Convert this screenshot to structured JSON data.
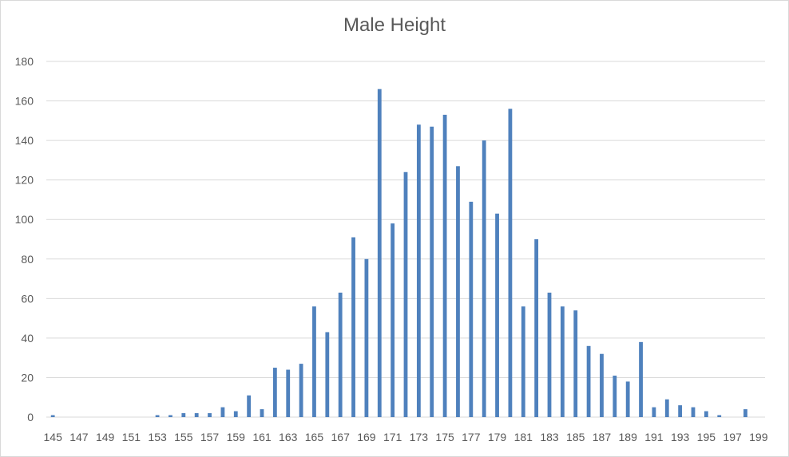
{
  "chart_data": {
    "type": "bar",
    "title": "Male Height",
    "xlabel": "",
    "ylabel": "",
    "ylim": [
      0,
      180
    ],
    "yticks": [
      "0",
      "20",
      "40",
      "60",
      "80",
      "100",
      "120",
      "140",
      "160",
      "180"
    ],
    "grid": true,
    "legend": "none",
    "bar_color": "#4f81bd",
    "categories": [
      "145",
      "146",
      "147",
      "148",
      "149",
      "150",
      "151",
      "152",
      "153",
      "154",
      "155",
      "156",
      "157",
      "158",
      "159",
      "160",
      "161",
      "162",
      "163",
      "164",
      "165",
      "166",
      "167",
      "168",
      "169",
      "170",
      "171",
      "172",
      "173",
      "174",
      "175",
      "176",
      "177",
      "178",
      "179",
      "180",
      "181",
      "182",
      "183",
      "184",
      "185",
      "186",
      "187",
      "188",
      "189",
      "190",
      "191",
      "192",
      "193",
      "194",
      "195",
      "196",
      "197",
      "198",
      "199"
    ],
    "xtick_labels": [
      "145",
      "",
      "147",
      "",
      "149",
      "",
      "151",
      "",
      "153",
      "",
      "155",
      "",
      "157",
      "",
      "159",
      "",
      "161",
      "",
      "163",
      "",
      "165",
      "",
      "167",
      "",
      "169",
      "",
      "171",
      "",
      "173",
      "",
      "175",
      "",
      "177",
      "",
      "179",
      "",
      "181",
      "",
      "183",
      "",
      "185",
      "",
      "187",
      "",
      "189",
      "",
      "191",
      "",
      "193",
      "",
      "195",
      "",
      "197",
      "",
      "199"
    ],
    "values": [
      1,
      0,
      0,
      0,
      0,
      0,
      0,
      0,
      1,
      1,
      2,
      2,
      2,
      5,
      3,
      11,
      4,
      25,
      24,
      27,
      56,
      43,
      63,
      91,
      80,
      166,
      98,
      124,
      148,
      147,
      153,
      127,
      109,
      140,
      103,
      156,
      56,
      90,
      63,
      56,
      54,
      36,
      32,
      21,
      18,
      38,
      5,
      9,
      6,
      5,
      3,
      1,
      0,
      4,
      0
    ]
  }
}
